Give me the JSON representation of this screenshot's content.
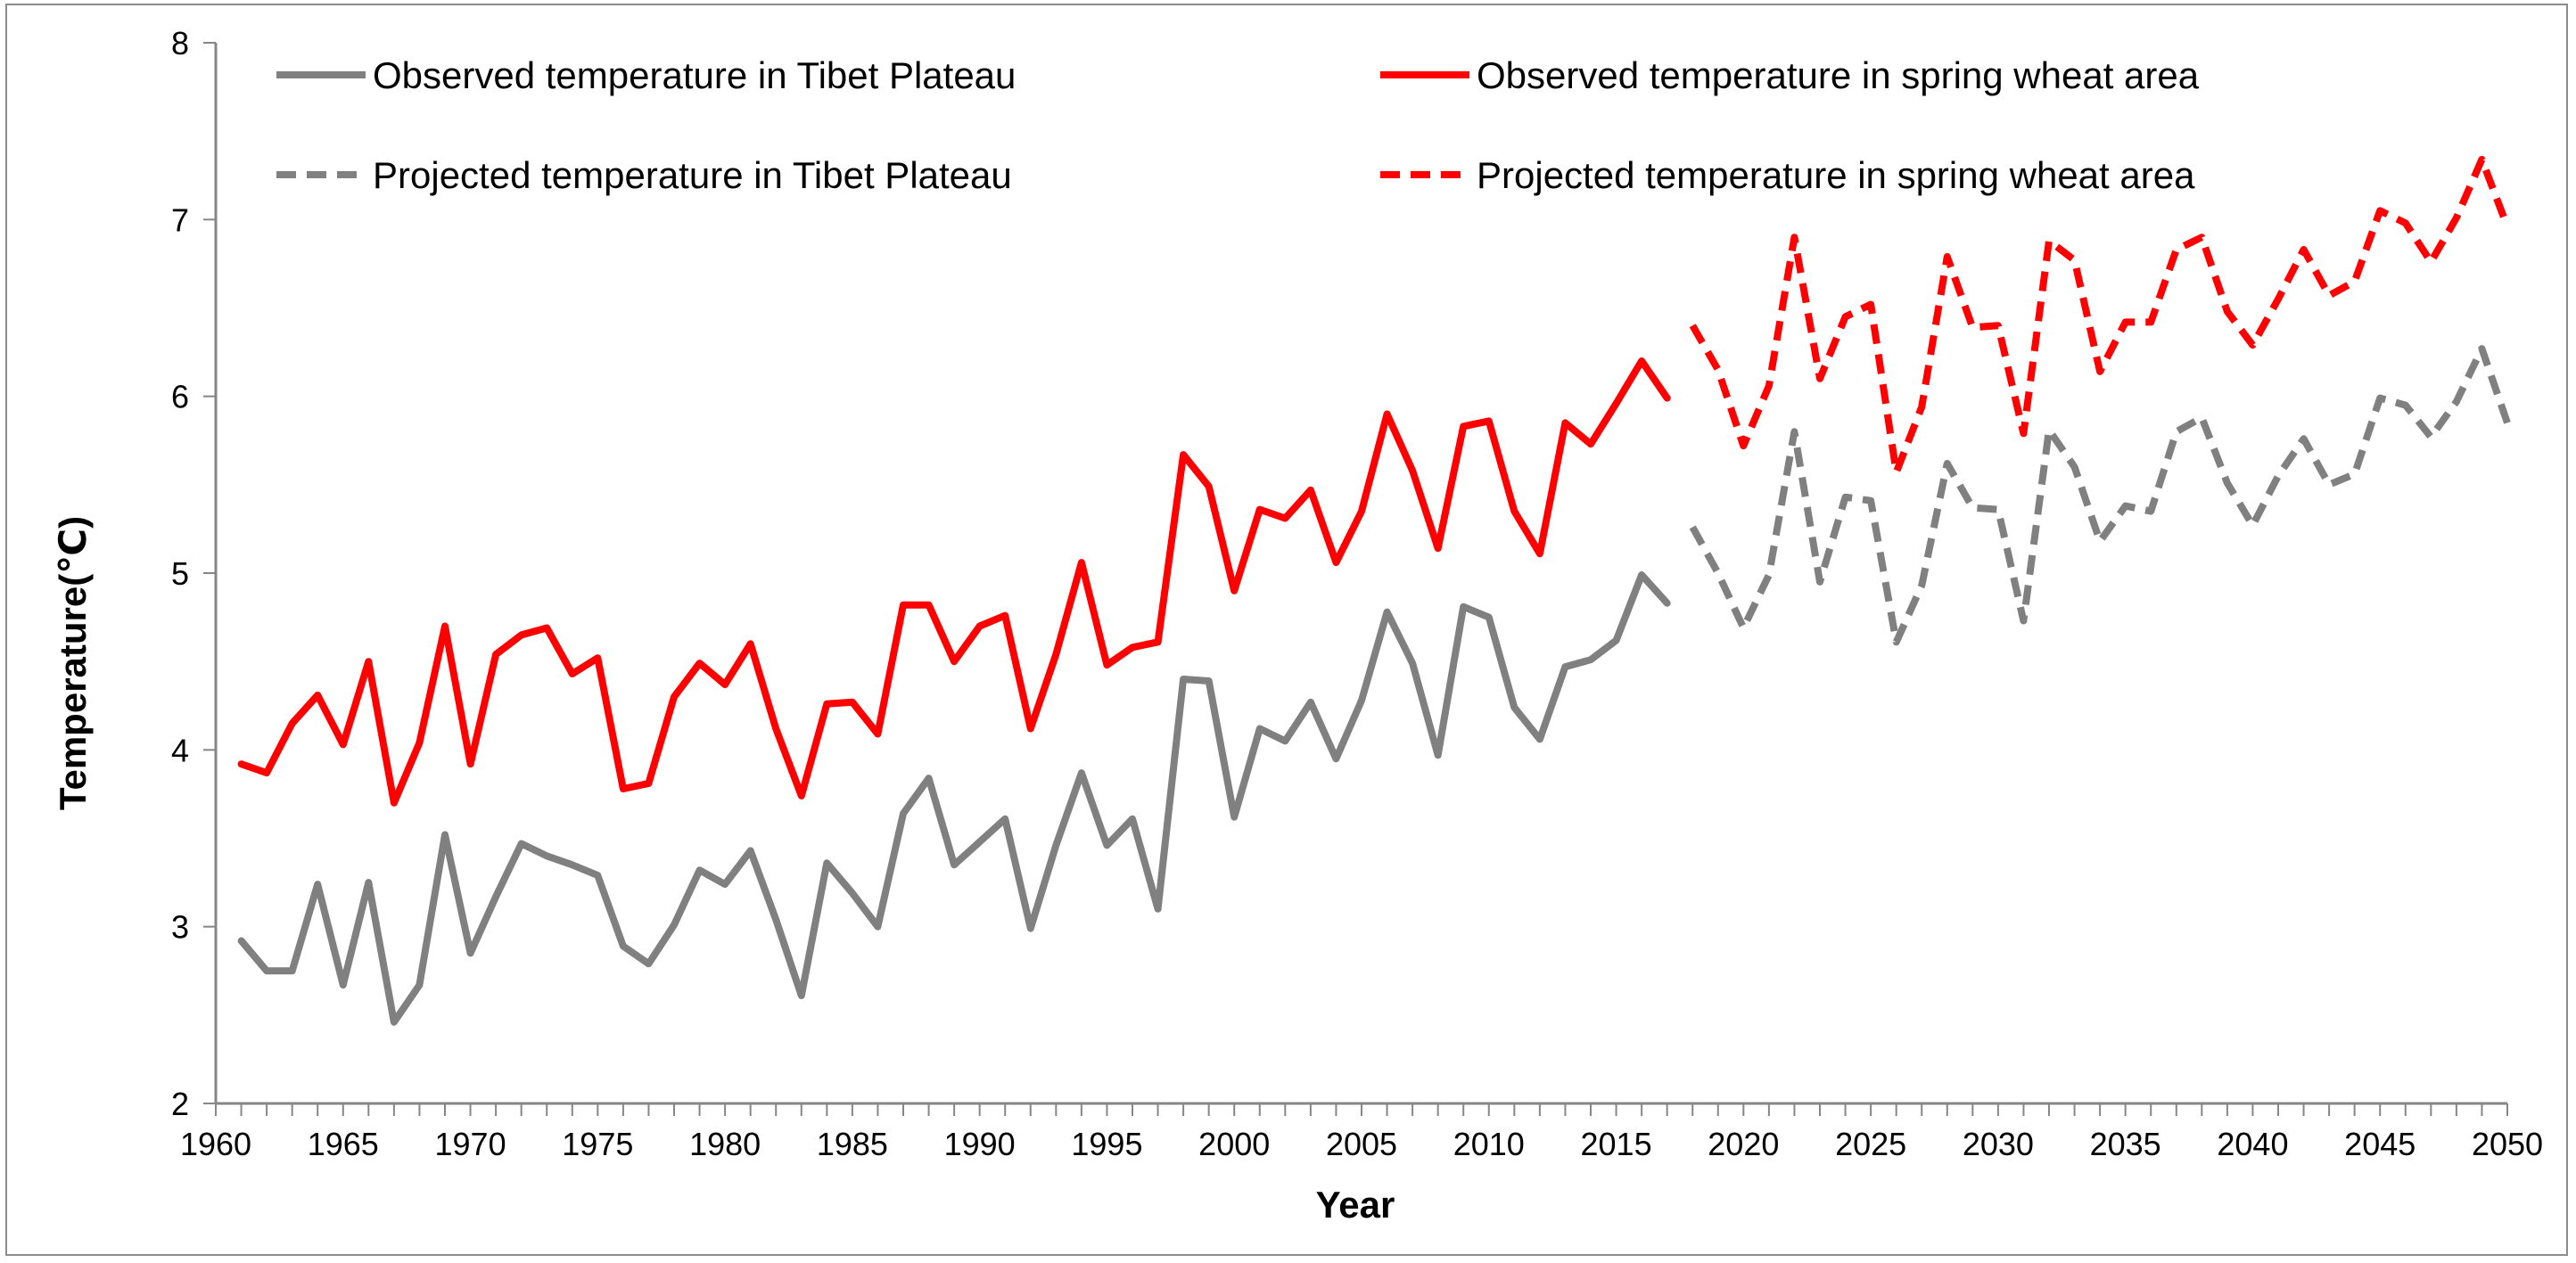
{
  "chart_data": {
    "type": "line",
    "title": "",
    "xlabel": "Year",
    "ylabel": "Temperature(℃)",
    "xlim": [
      1960,
      2050
    ],
    "ylim": [
      2,
      8
    ],
    "x_ticks": [
      1960,
      1965,
      1970,
      1975,
      1980,
      1985,
      1990,
      1995,
      2000,
      2005,
      2010,
      2015,
      2020,
      2025,
      2030,
      2035,
      2040,
      2045,
      2050
    ],
    "y_ticks": [
      2,
      3,
      4,
      5,
      6,
      7,
      8
    ],
    "grid": false,
    "legend_position": "top",
    "series": [
      {
        "name": "Observed temperature in Tibet Plateau",
        "color": "#808080",
        "dash": "solid",
        "x_start": 1961,
        "values": [
          2.92,
          2.75,
          2.75,
          3.24,
          2.67,
          3.25,
          2.46,
          2.67,
          3.52,
          2.85,
          3.17,
          3.47,
          3.4,
          3.35,
          3.29,
          2.89,
          2.79,
          3.01,
          3.32,
          3.24,
          3.43,
          3.04,
          2.61,
          3.36,
          3.19,
          3.0,
          3.64,
          3.84,
          3.35,
          3.48,
          3.61,
          2.99,
          3.46,
          3.87,
          3.46,
          3.61,
          3.1,
          4.4,
          4.39,
          3.62,
          4.12,
          4.05,
          4.27,
          3.95,
          4.28,
          4.78,
          4.49,
          3.97,
          4.81,
          4.75,
          4.24,
          4.06,
          4.47,
          4.51,
          4.62,
          4.99,
          4.83
        ]
      },
      {
        "name": "Observed temperature in spring wheat area",
        "color": "#ff0000",
        "dash": "solid",
        "x_start": 1961,
        "values": [
          3.92,
          3.87,
          4.15,
          4.31,
          4.03,
          4.5,
          3.7,
          4.04,
          4.7,
          3.92,
          4.54,
          4.65,
          4.69,
          4.43,
          4.52,
          3.78,
          3.81,
          4.3,
          4.49,
          4.37,
          4.6,
          4.12,
          3.74,
          4.26,
          4.27,
          4.09,
          4.82,
          4.82,
          4.5,
          4.7,
          4.76,
          4.12,
          4.54,
          5.06,
          4.48,
          4.58,
          4.61,
          5.67,
          5.49,
          4.9,
          5.36,
          5.31,
          5.47,
          5.06,
          5.35,
          5.9,
          5.58,
          5.14,
          5.83,
          5.86,
          5.35,
          5.11,
          5.85,
          5.73,
          5.96,
          6.2,
          5.99
        ]
      },
      {
        "name": "Projected temperature in Tibet Plateau",
        "color": "#808080",
        "dash": "dashed",
        "x_start": 2018,
        "values": [
          5.26,
          5.0,
          4.69,
          4.99,
          5.8,
          4.95,
          5.43,
          5.41,
          4.61,
          4.93,
          5.62,
          5.37,
          5.36,
          4.73,
          5.81,
          5.6,
          5.18,
          5.38,
          5.35,
          5.8,
          5.88,
          5.51,
          5.27,
          5.55,
          5.76,
          5.5,
          5.56,
          5.99,
          5.95,
          5.77,
          5.97,
          6.27,
          5.85
        ]
      },
      {
        "name": "Projected temperature in spring wheat area",
        "color": "#ff0000",
        "dash": "dashed",
        "x_start": 2018,
        "values": [
          6.4,
          6.15,
          5.72,
          6.06,
          6.9,
          6.1,
          6.45,
          6.52,
          5.57,
          5.94,
          6.79,
          6.39,
          6.4,
          5.79,
          6.88,
          6.77,
          6.14,
          6.42,
          6.42,
          6.83,
          6.9,
          6.48,
          6.29,
          6.55,
          6.83,
          6.57,
          6.65,
          7.05,
          6.98,
          6.76,
          7.01,
          7.34,
          6.96
        ]
      }
    ]
  }
}
